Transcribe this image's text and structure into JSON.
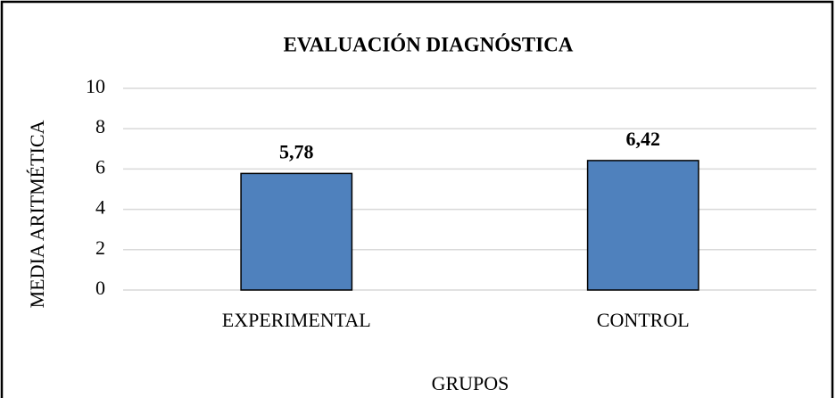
{
  "chart_data": {
    "type": "bar",
    "title": "EVALUACIÓN DIAGNÓSTICA",
    "x_label": "GRUPOS",
    "y_label": "MEDIA ARITMÉTICA",
    "categories": [
      "EXPERIMENTAL",
      "CONTROL"
    ],
    "values": [
      5.78,
      6.42
    ],
    "value_labels": [
      "5,78",
      "6,42"
    ],
    "color": "#4f81bd",
    "ylim": [
      0,
      10
    ],
    "yticks": [
      0,
      2,
      4,
      6,
      8,
      10
    ],
    "grid": true
  }
}
